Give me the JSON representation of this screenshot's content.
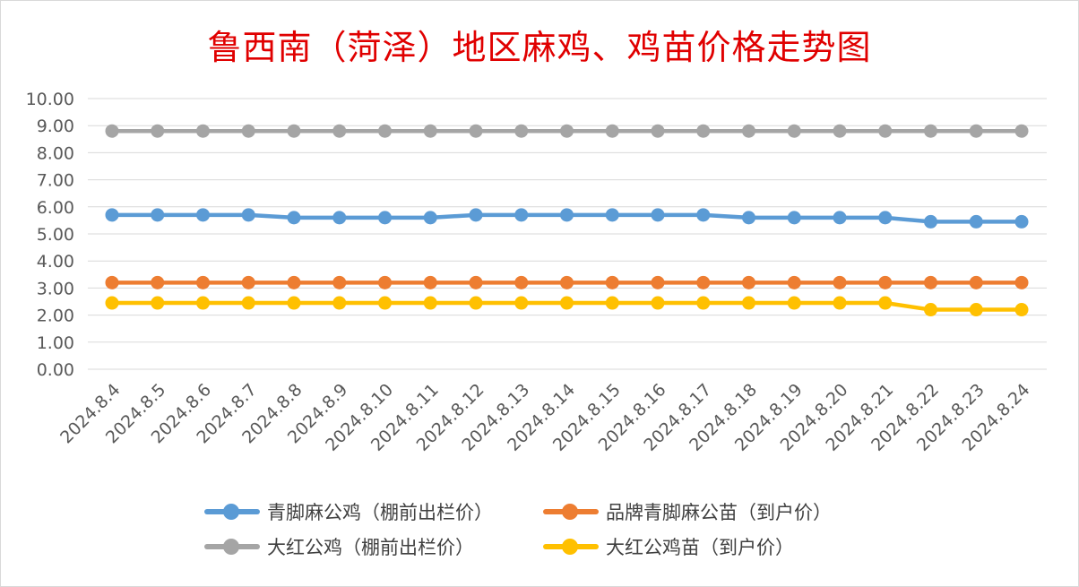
{
  "chart_data": {
    "type": "line",
    "title": "鲁西南（菏泽）地区麻鸡、鸡苗价格走势图",
    "ylim": [
      0,
      10
    ],
    "yticks": [
      "0.00",
      "1.00",
      "2.00",
      "3.00",
      "4.00",
      "5.00",
      "6.00",
      "7.00",
      "8.00",
      "9.00",
      "10.00"
    ],
    "categories": [
      "2024.8.4",
      "2024.8.5",
      "2024.8.6",
      "2024.8.7",
      "2024.8.8",
      "2024.8.9",
      "2024.8.10",
      "2024.8.11",
      "2024.8.12",
      "2024.8.13",
      "2024.8.14",
      "2024.8.15",
      "2024.8.16",
      "2024.8.17",
      "2024.8.18",
      "2024.8.19",
      "2024.8.20",
      "2024.8.21",
      "2024.8.22",
      "2024.8.23",
      "2024.8.24"
    ],
    "grid": true,
    "legend_position": "bottom",
    "series": [
      {
        "name": "青脚麻公鸡（棚前出栏价）",
        "color": "#5b9bd5",
        "values": [
          5.7,
          5.7,
          5.7,
          5.7,
          5.6,
          5.6,
          5.6,
          5.6,
          5.7,
          5.7,
          5.7,
          5.7,
          5.7,
          5.7,
          5.6,
          5.6,
          5.6,
          5.6,
          5.45,
          5.45,
          5.45
        ]
      },
      {
        "name": "品牌青脚麻公苗（到户价）",
        "color": "#ed7d31",
        "values": [
          3.2,
          3.2,
          3.2,
          3.2,
          3.2,
          3.2,
          3.2,
          3.2,
          3.2,
          3.2,
          3.2,
          3.2,
          3.2,
          3.2,
          3.2,
          3.2,
          3.2,
          3.2,
          3.2,
          3.2,
          3.2
        ]
      },
      {
        "name": "大红公鸡（棚前出栏价）",
        "color": "#a5a5a5",
        "values": [
          8.8,
          8.8,
          8.8,
          8.8,
          8.8,
          8.8,
          8.8,
          8.8,
          8.8,
          8.8,
          8.8,
          8.8,
          8.8,
          8.8,
          8.8,
          8.8,
          8.8,
          8.8,
          8.8,
          8.8,
          8.8
        ]
      },
      {
        "name": "大红公鸡苗（到户价）",
        "color": "#ffc000",
        "values": [
          2.45,
          2.45,
          2.45,
          2.45,
          2.45,
          2.45,
          2.45,
          2.45,
          2.45,
          2.45,
          2.45,
          2.45,
          2.45,
          2.45,
          2.45,
          2.45,
          2.45,
          2.45,
          2.2,
          2.2,
          2.2
        ]
      }
    ]
  }
}
